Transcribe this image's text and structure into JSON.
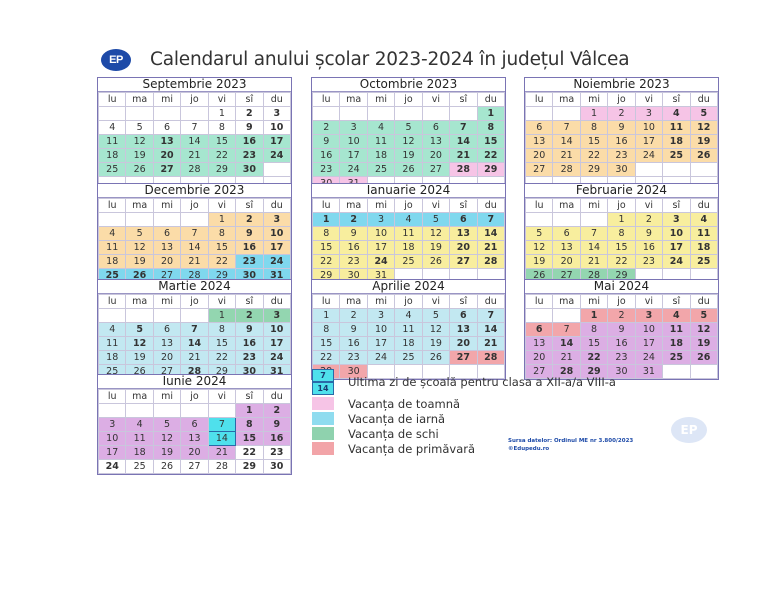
{
  "header": {
    "logo": "EP",
    "title": "Calendarul anului școlar 2023-2024 în județul Vâlcea"
  },
  "weekdays": [
    "lu",
    "ma",
    "mi",
    "jo",
    "vi",
    "sî",
    "du"
  ],
  "colors": {
    "toamna": "#f6c4e6",
    "iarna": "#a8e4f2",
    "iarna_strong": "#7fd8ee",
    "schi": "#8fd2ae",
    "primavara": "#f2a4a8",
    "module_green": "#a3e4cc",
    "module_orange": "#fbdba6",
    "module_yellow": "#f9ef9c",
    "module_blue": "#bfe6ef",
    "module_purple": "#d8a8e0",
    "last_day": "#4fe0ec"
  },
  "months": [
    {
      "name": "Septembrie 2023",
      "weeks": [
        [
          "",
          "",
          "",
          "",
          "1",
          "2",
          "3"
        ],
        [
          "4",
          "5",
          "6",
          "7",
          "8",
          "9",
          "10"
        ],
        [
          "11",
          "12",
          "13",
          "14",
          "15",
          "16",
          "17"
        ],
        [
          "18",
          "19",
          "20",
          "21",
          "22",
          "23",
          "24"
        ],
        [
          "25",
          "26",
          "27",
          "28",
          "29",
          "30",
          ""
        ],
        [
          "",
          "",
          "",
          "",
          "",
          "",
          ""
        ]
      ]
    },
    {
      "name": "Octombrie 2023",
      "weeks": [
        [
          "",
          "",
          "",
          "",
          "",
          "",
          "1"
        ],
        [
          "2",
          "3",
          "4",
          "5",
          "6",
          "7",
          "8"
        ],
        [
          "9",
          "10",
          "11",
          "12",
          "13",
          "14",
          "15"
        ],
        [
          "16",
          "17",
          "18",
          "19",
          "20",
          "21",
          "22"
        ],
        [
          "23",
          "24",
          "25",
          "26",
          "27",
          "28",
          "29"
        ],
        [
          "30",
          "31",
          "",
          "",
          "",
          "",
          ""
        ]
      ]
    },
    {
      "name": "Noiembrie 2023",
      "weeks": [
        [
          "",
          "",
          "1",
          "2",
          "3",
          "4",
          "5"
        ],
        [
          "6",
          "7",
          "8",
          "9",
          "10",
          "11",
          "12"
        ],
        [
          "13",
          "14",
          "15",
          "16",
          "17",
          "18",
          "19"
        ],
        [
          "20",
          "21",
          "22",
          "23",
          "24",
          "25",
          "26"
        ],
        [
          "27",
          "28",
          "29",
          "30",
          "",
          "",
          ""
        ],
        [
          "",
          "",
          "",
          "",
          "",
          "",
          ""
        ]
      ]
    },
    {
      "name": "Decembrie 2023",
      "weeks": [
        [
          "",
          "",
          "",
          "",
          "1",
          "2",
          "3"
        ],
        [
          "4",
          "5",
          "6",
          "7",
          "8",
          "9",
          "10"
        ],
        [
          "11",
          "12",
          "13",
          "14",
          "15",
          "16",
          "17"
        ],
        [
          "18",
          "19",
          "20",
          "21",
          "22",
          "23",
          "24"
        ],
        [
          "25",
          "26",
          "27",
          "28",
          "29",
          "30",
          "31"
        ]
      ]
    },
    {
      "name": "Ianuarie 2024",
      "weeks": [
        [
          "1",
          "2",
          "3",
          "4",
          "5",
          "6",
          "7"
        ],
        [
          "8",
          "9",
          "10",
          "11",
          "12",
          "13",
          "14"
        ],
        [
          "15",
          "16",
          "17",
          "18",
          "19",
          "20",
          "21"
        ],
        [
          "22",
          "23",
          "24",
          "25",
          "26",
          "27",
          "28"
        ],
        [
          "29",
          "30",
          "31",
          "",
          "",
          "",
          ""
        ]
      ]
    },
    {
      "name": "Februarie 2024",
      "weeks": [
        [
          "",
          "",
          "",
          "1",
          "2",
          "3",
          "4"
        ],
        [
          "5",
          "6",
          "7",
          "8",
          "9",
          "10",
          "11"
        ],
        [
          "12",
          "13",
          "14",
          "15",
          "16",
          "17",
          "18"
        ],
        [
          "19",
          "20",
          "21",
          "22",
          "23",
          "24",
          "25"
        ],
        [
          "26",
          "27",
          "28",
          "29",
          "",
          "",
          ""
        ]
      ]
    },
    {
      "name": "Martie 2024",
      "weeks": [
        [
          "",
          "",
          "",
          "",
          "1",
          "2",
          "3"
        ],
        [
          "4",
          "5",
          "6",
          "7",
          "8",
          "9",
          "10"
        ],
        [
          "11",
          "12",
          "13",
          "14",
          "15",
          "16",
          "17"
        ],
        [
          "18",
          "19",
          "20",
          "21",
          "22",
          "23",
          "24"
        ],
        [
          "25",
          "26",
          "27",
          "28",
          "29",
          "30",
          "31"
        ]
      ]
    },
    {
      "name": "Aprilie 2024",
      "weeks": [
        [
          "1",
          "2",
          "3",
          "4",
          "5",
          "6",
          "7"
        ],
        [
          "8",
          "9",
          "10",
          "11",
          "12",
          "13",
          "14"
        ],
        [
          "15",
          "16",
          "17",
          "18",
          "19",
          "20",
          "21"
        ],
        [
          "22",
          "23",
          "24",
          "25",
          "26",
          "27",
          "28"
        ],
        [
          "29",
          "30",
          "",
          "",
          "",
          "",
          ""
        ]
      ]
    },
    {
      "name": "Mai 2024",
      "weeks": [
        [
          "",
          "",
          "1",
          "2",
          "3",
          "4",
          "5"
        ],
        [
          "6",
          "7",
          "8",
          "9",
          "10",
          "11",
          "12"
        ],
        [
          "13",
          "14",
          "15",
          "16",
          "17",
          "18",
          "19"
        ],
        [
          "20",
          "21",
          "22",
          "23",
          "24",
          "25",
          "26"
        ],
        [
          "27",
          "28",
          "29",
          "30",
          "31",
          "",
          ""
        ]
      ]
    },
    {
      "name": "Iunie 2024",
      "weeks": [
        [
          "",
          "",
          "",
          "",
          "",
          "1",
          "2"
        ],
        [
          "3",
          "4",
          "5",
          "6",
          "7",
          "8",
          "9"
        ],
        [
          "10",
          "11",
          "12",
          "13",
          "14",
          "15",
          "16"
        ],
        [
          "17",
          "18",
          "19",
          "20",
          "21",
          "22",
          "23"
        ],
        [
          "24",
          "25",
          "26",
          "27",
          "28",
          "29",
          "30"
        ]
      ]
    }
  ],
  "legend": {
    "last_day_top": "7",
    "last_day_bottom": "14",
    "items": [
      {
        "label": "Ultima zi de școală pentru clasa a XII-a/a VIII-a"
      },
      {
        "label": "Vacanța de toamnă",
        "color": "#f6c4e6"
      },
      {
        "label": "Vacanța de iarnă",
        "color": "#8fdcef"
      },
      {
        "label": "Vacanța de schi",
        "color": "#8fd2ae"
      },
      {
        "label": "Vacanța de primăvară",
        "color": "#f2a4a8"
      }
    ]
  },
  "watermarks": [
    "©Edupedu.ro",
    "©Edupedu.ro",
    "©Edupedu.ro"
  ],
  "source": {
    "line1": "Sursa datelor: Ordinul ME nr 3.800/2023",
    "line2": "©Edupedu.ro"
  },
  "corner_logo": "EP"
}
